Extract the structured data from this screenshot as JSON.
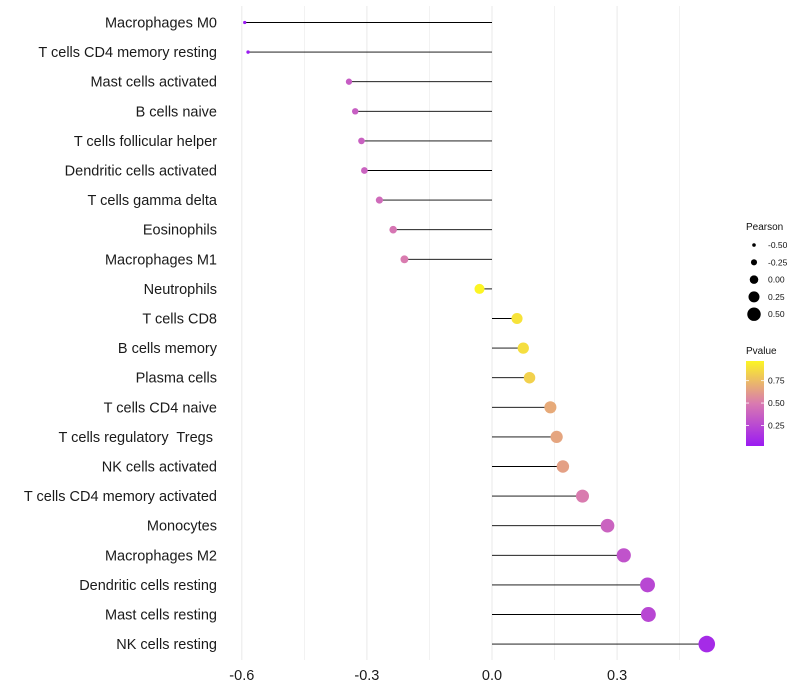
{
  "chart_data": {
    "type": "lollipop",
    "title": "",
    "xlabel": "",
    "ylabel": "",
    "xlim": [
      -0.62,
      0.53
    ],
    "x_ticks": [
      -0.6,
      -0.3,
      0.0,
      0.3
    ],
    "x_tick_labels": [
      "-0.6",
      "-0.3",
      "0.0",
      "0.3"
    ],
    "grid": true,
    "items": [
      {
        "label": "Macrophages M0",
        "value": -0.593,
        "pvalue": 0.02
      },
      {
        "label": "T cells CD4 memory resting",
        "value": -0.585,
        "pvalue": 0.02
      },
      {
        "label": "Mast cells activated",
        "value": -0.343,
        "pvalue": 0.35
      },
      {
        "label": "B cells naive",
        "value": -0.328,
        "pvalue": 0.36
      },
      {
        "label": "T cells follicular helper",
        "value": -0.313,
        "pvalue": 0.37
      },
      {
        "label": "Dendritic cells activated",
        "value": -0.306,
        "pvalue": 0.38
      },
      {
        "label": "T cells gamma delta",
        "value": -0.27,
        "pvalue": 0.42
      },
      {
        "label": "Eosinophils",
        "value": -0.237,
        "pvalue": 0.47
      },
      {
        "label": "Macrophages M1",
        "value": -0.21,
        "pvalue": 0.5
      },
      {
        "label": "Neutrophils",
        "value": -0.03,
        "pvalue": 0.97
      },
      {
        "label": "T cells CD8",
        "value": 0.06,
        "pvalue": 0.9
      },
      {
        "label": "B cells memory",
        "value": 0.075,
        "pvalue": 0.88
      },
      {
        "label": "Plasma cells",
        "value": 0.09,
        "pvalue": 0.83
      },
      {
        "label": "T cells CD4 naive",
        "value": 0.14,
        "pvalue": 0.68
      },
      {
        "label": "T cells regulatory  Tregs ",
        "value": 0.155,
        "pvalue": 0.66
      },
      {
        "label": "NK cells activated",
        "value": 0.17,
        "pvalue": 0.64
      },
      {
        "label": "T cells CD4 memory activated",
        "value": 0.217,
        "pvalue": 0.5
      },
      {
        "label": "Monocytes",
        "value": 0.277,
        "pvalue": 0.38
      },
      {
        "label": "Macrophages M2",
        "value": 0.316,
        "pvalue": 0.3
      },
      {
        "label": "Dendritic cells resting",
        "value": 0.373,
        "pvalue": 0.24
      },
      {
        "label": "Mast cells resting",
        "value": 0.375,
        "pvalue": 0.24
      },
      {
        "label": "NK cells resting",
        "value": 0.515,
        "pvalue": 0.1
      }
    ],
    "legend_size": {
      "title": "Pearson",
      "values": [
        -0.5,
        -0.25,
        0.0,
        0.25,
        0.5
      ],
      "labels": [
        "-0.50",
        "-0.25",
        "0.00",
        "0.25",
        "0.50"
      ]
    },
    "legend_color": {
      "title": "Pvalue",
      "range": [
        0.02,
        0.97
      ],
      "ticks": [
        0.75,
        0.5,
        0.25
      ],
      "tick_labels": [
        "0.75",
        "0.50",
        "0.25"
      ],
      "low_color": "#9b1bf2",
      "mid_color": "#d97ab0",
      "high_color": "#fcf524"
    },
    "legend_position": "right"
  }
}
